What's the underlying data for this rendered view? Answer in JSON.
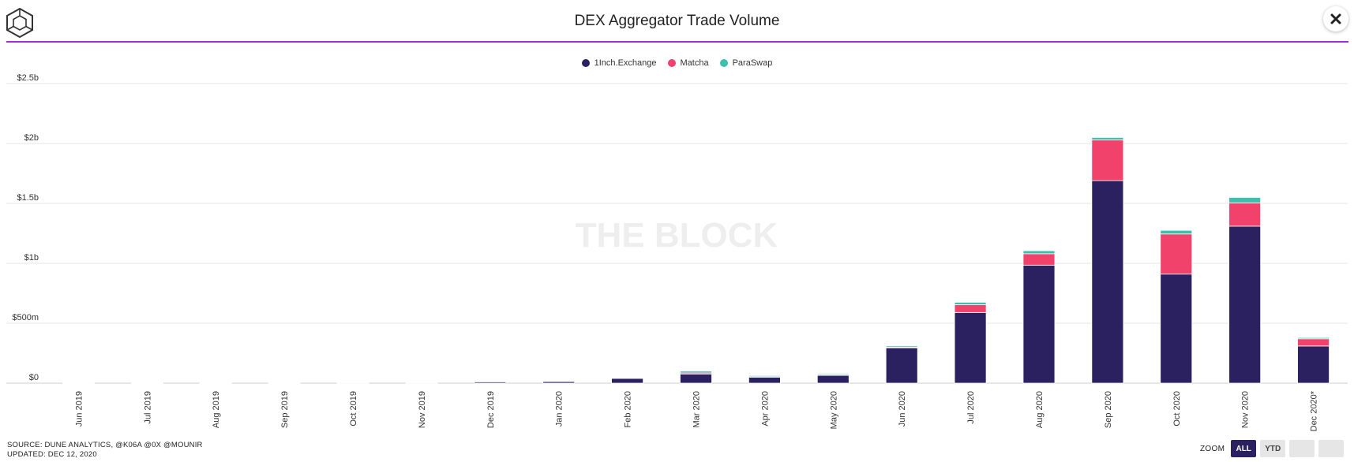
{
  "header": {
    "title": "DEX Aggregator Trade Volume"
  },
  "watermark": "THE BLOCK",
  "footer": {
    "source": "SOURCE: DUNE ANALYTICS, @K06A @0X @MOUNIR",
    "updated": "UPDATED: DEC 12, 2020"
  },
  "zoom": {
    "label": "ZOOM",
    "buttons": [
      {
        "label": "ALL",
        "active": true
      },
      {
        "label": "YTD",
        "active": false
      },
      {
        "label": "",
        "active": false
      },
      {
        "label": "",
        "active": false
      }
    ]
  },
  "icons": {
    "logo": "cube-logo-icon",
    "close": "close-icon"
  },
  "colors": {
    "accent_rule": "#9b30d9",
    "grid": "#e6e6e6"
  },
  "chart_data": {
    "type": "bar",
    "stacked": true,
    "title": "DEX Aggregator Trade Volume",
    "xlabel": "",
    "ylabel": "",
    "ylim": [
      0,
      2500000000
    ],
    "yticks": [
      {
        "value": 0,
        "label": "$0"
      },
      {
        "value": 500000000,
        "label": "$500m"
      },
      {
        "value": 1000000000,
        "label": "$1b"
      },
      {
        "value": 1500000000,
        "label": "$1.5b"
      },
      {
        "value": 2000000000,
        "label": "$2b"
      },
      {
        "value": 2500000000,
        "label": "$2.5b"
      }
    ],
    "grid": true,
    "legend_position": "top-center",
    "categories": [
      "Jun 2019",
      "Jul 2019",
      "Aug 2019",
      "Sep 2019",
      "Oct 2019",
      "Nov 2019",
      "Dec 2019",
      "Jan 2020",
      "Feb 2020",
      "Mar 2020",
      "Apr 2020",
      "May 2020",
      "Jun 2020",
      "Jul 2020",
      "Aug 2020",
      "Sep 2020",
      "Oct 2020",
      "Nov 2020",
      "Dec 2020*"
    ],
    "series": [
      {
        "name": "1Inch.Exchange",
        "color": "#2b2060",
        "values": [
          500000,
          1000000,
          1000000,
          2000000,
          5000000,
          4000000,
          10000000,
          15000000,
          40000000,
          75000000,
          50000000,
          65000000,
          295000000,
          590000000,
          985000000,
          1690000000,
          910000000,
          1310000000,
          310000000
        ]
      },
      {
        "name": "Matcha",
        "color": "#f0426b",
        "values": [
          0,
          0,
          0,
          0,
          0,
          0,
          0,
          2000000,
          5000000,
          10000000,
          5000000,
          5000000,
          5000000,
          65000000,
          95000000,
          340000000,
          335000000,
          195000000,
          60000000
        ]
      },
      {
        "name": "ParaSwap",
        "color": "#3dbfad",
        "values": [
          0,
          0,
          0,
          0,
          0,
          0,
          0,
          2000000,
          5000000,
          15000000,
          8000000,
          8000000,
          10000000,
          20000000,
          25000000,
          20000000,
          30000000,
          45000000,
          10000000
        ]
      }
    ]
  }
}
